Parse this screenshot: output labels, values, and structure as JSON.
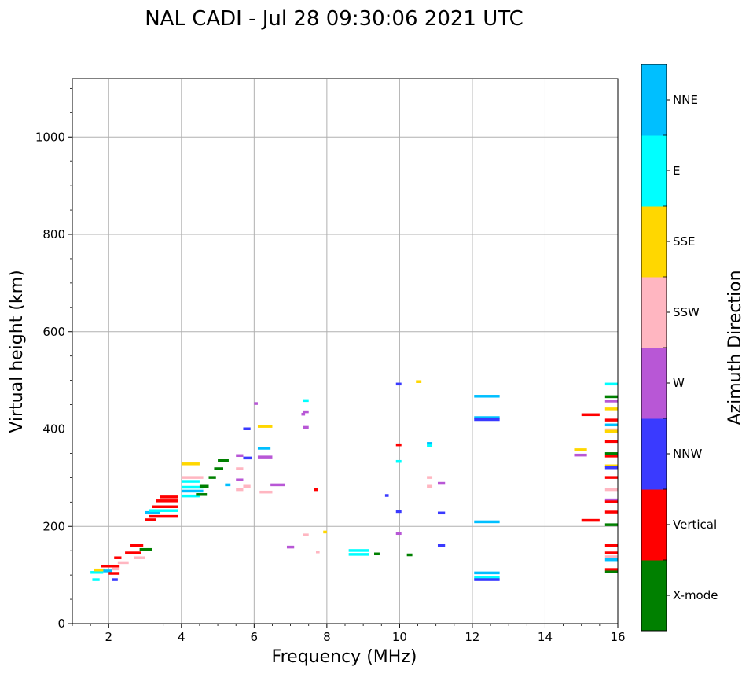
{
  "chart_data": {
    "type": "scatter",
    "title": "NAL CADI - Jul 28 09:30:06 2021 UTC",
    "xlabel": "Frequency (MHz)",
    "ylabel": "Virtual height (km)",
    "xlim": [
      1,
      16
    ],
    "ylim": [
      0,
      1120
    ],
    "xticks": [
      2,
      4,
      6,
      8,
      10,
      12,
      14,
      16
    ],
    "yticks": [
      0,
      200,
      400,
      600,
      800,
      1000
    ],
    "grid": true,
    "colorbar": {
      "label": "Azimuth Direction",
      "categories": [
        {
          "name": "X-mode",
          "color": "#008000"
        },
        {
          "name": "Vertical",
          "color": "#ff0000"
        },
        {
          "name": "NNW",
          "color": "#3a3aff"
        },
        {
          "name": "W",
          "color": "#b857d6"
        },
        {
          "name": "SSW",
          "color": "#ffb6c1"
        },
        {
          "name": "SSE",
          "color": "#ffd700"
        },
        {
          "name": "E",
          "color": "#00ffff"
        },
        {
          "name": "NNE",
          "color": "#00bfff"
        }
      ]
    },
    "echoes": [
      {
        "f": [
          1.5,
          1.85
        ],
        "h": 105,
        "d": "E"
      },
      {
        "f": [
          1.6,
          1.9
        ],
        "h": 110,
        "d": "SSE"
      },
      {
        "f": [
          1.55,
          1.75
        ],
        "h": 90,
        "d": "E"
      },
      {
        "f": [
          1.8,
          2.3
        ],
        "h": 118,
        "d": "Vertical"
      },
      {
        "f": [
          1.85,
          2.1
        ],
        "h": 108,
        "d": "NNE"
      },
      {
        "f": [
          2.0,
          2.3
        ],
        "h": 103,
        "d": "Vertical"
      },
      {
        "f": [
          2.1,
          2.3
        ],
        "h": 112,
        "d": "SSW"
      },
      {
        "f": [
          2.1,
          2.25
        ],
        "h": 90,
        "d": "NNW"
      },
      {
        "f": [
          2.15,
          2.35
        ],
        "h": 135,
        "d": "Vertical"
      },
      {
        "f": [
          2.25,
          2.55
        ],
        "h": 125,
        "d": "SSW"
      },
      {
        "f": [
          2.45,
          2.9
        ],
        "h": 145,
        "d": "Vertical"
      },
      {
        "f": [
          2.6,
          2.95
        ],
        "h": 160,
        "d": "Vertical"
      },
      {
        "f": [
          2.7,
          3.0
        ],
        "h": 135,
        "d": "SSW"
      },
      {
        "f": [
          2.85,
          3.2
        ],
        "h": 152,
        "d": "X-mode"
      },
      {
        "f": [
          3.0,
          3.3
        ],
        "h": 213,
        "d": "Vertical"
      },
      {
        "f": [
          3.0,
          3.4
        ],
        "h": 228,
        "d": "NNE"
      },
      {
        "f": [
          3.1,
          3.9
        ],
        "h": 220,
        "d": "Vertical"
      },
      {
        "f": [
          3.1,
          3.9
        ],
        "h": 232,
        "d": "E"
      },
      {
        "f": [
          3.2,
          3.9
        ],
        "h": 240,
        "d": "Vertical"
      },
      {
        "f": [
          3.3,
          3.9
        ],
        "h": 252,
        "d": "Vertical"
      },
      {
        "f": [
          3.4,
          3.9
        ],
        "h": 260,
        "d": "Vertical"
      },
      {
        "f": [
          4.0,
          4.5
        ],
        "h": 262,
        "d": "E"
      },
      {
        "f": [
          4.0,
          4.6
        ],
        "h": 272,
        "d": "NNE"
      },
      {
        "f": [
          4.0,
          4.6
        ],
        "h": 280,
        "d": "E"
      },
      {
        "f": [
          4.0,
          4.5
        ],
        "h": 292,
        "d": "E"
      },
      {
        "f": [
          4.0,
          4.6
        ],
        "h": 300,
        "d": "SSW"
      },
      {
        "f": [
          4.4,
          4.7
        ],
        "h": 265,
        "d": "X-mode"
      },
      {
        "f": [
          4.5,
          4.75
        ],
        "h": 282,
        "d": "X-mode"
      },
      {
        "f": [
          4.0,
          4.5
        ],
        "h": 328,
        "d": "SSE"
      },
      {
        "f": [
          4.75,
          4.95
        ],
        "h": 300,
        "d": "X-mode"
      },
      {
        "f": [
          4.9,
          5.15
        ],
        "h": 318,
        "d": "X-mode"
      },
      {
        "f": [
          5.0,
          5.3
        ],
        "h": 335,
        "d": "X-mode"
      },
      {
        "f": [
          5.5,
          5.7
        ],
        "h": 345,
        "d": "W"
      },
      {
        "f": [
          5.5,
          5.7
        ],
        "h": 318,
        "d": "SSW"
      },
      {
        "f": [
          5.7,
          5.95
        ],
        "h": 340,
        "d": "NNW"
      },
      {
        "f": [
          5.5,
          5.7
        ],
        "h": 295,
        "d": "W"
      },
      {
        "f": [
          5.2,
          5.35
        ],
        "h": 285,
        "d": "NNE"
      },
      {
        "f": [
          5.5,
          5.7
        ],
        "h": 275,
        "d": "SSW"
      },
      {
        "f": [
          5.7,
          5.9
        ],
        "h": 282,
        "d": "SSW"
      },
      {
        "f": [
          5.7,
          5.9
        ],
        "h": 400,
        "d": "NNW"
      },
      {
        "f": [
          6.0,
          6.1
        ],
        "h": 452,
        "d": "W"
      },
      {
        "f": [
          6.1,
          6.5
        ],
        "h": 405,
        "d": "SSE"
      },
      {
        "f": [
          6.1,
          6.45
        ],
        "h": 360,
        "d": "NNE"
      },
      {
        "f": [
          6.1,
          6.5
        ],
        "h": 342,
        "d": "W"
      },
      {
        "f": [
          6.45,
          6.85
        ],
        "h": 285,
        "d": "W"
      },
      {
        "f": [
          6.15,
          6.5
        ],
        "h": 270,
        "d": "SSW"
      },
      {
        "f": [
          6.9,
          7.1
        ],
        "h": 157,
        "d": "W"
      },
      {
        "f": [
          7.35,
          7.5
        ],
        "h": 458,
        "d": "E"
      },
      {
        "f": [
          7.35,
          7.5
        ],
        "h": 435,
        "d": "W"
      },
      {
        "f": [
          7.3,
          7.4
        ],
        "h": 430,
        "d": "W"
      },
      {
        "f": [
          7.35,
          7.5
        ],
        "h": 403,
        "d": "W"
      },
      {
        "f": [
          7.35,
          7.5
        ],
        "h": 182,
        "d": "SSW"
      },
      {
        "f": [
          7.65,
          7.75
        ],
        "h": 275,
        "d": "Vertical"
      },
      {
        "f": [
          7.7,
          7.8
        ],
        "h": 147,
        "d": "SSW"
      },
      {
        "f": [
          7.9,
          8.0
        ],
        "h": 188,
        "d": "SSE"
      },
      {
        "f": [
          8.6,
          9.15
        ],
        "h": 150,
        "d": "E"
      },
      {
        "f": [
          8.6,
          9.15
        ],
        "h": 142,
        "d": "E"
      },
      {
        "f": [
          9.3,
          9.45
        ],
        "h": 143,
        "d": "X-mode"
      },
      {
        "f": [
          9.6,
          9.7
        ],
        "h": 263,
        "d": "NNW"
      },
      {
        "f": [
          9.9,
          10.05
        ],
        "h": 492,
        "d": "NNW"
      },
      {
        "f": [
          9.9,
          10.05
        ],
        "h": 367,
        "d": "Vertical"
      },
      {
        "f": [
          9.9,
          10.05
        ],
        "h": 333,
        "d": "E"
      },
      {
        "f": [
          9.9,
          10.05
        ],
        "h": 230,
        "d": "NNW"
      },
      {
        "f": [
          9.9,
          10.05
        ],
        "h": 185,
        "d": "W"
      },
      {
        "f": [
          10.2,
          10.35
        ],
        "h": 141,
        "d": "X-mode"
      },
      {
        "f": [
          10.45,
          10.6
        ],
        "h": 497,
        "d": "SSE"
      },
      {
        "f": [
          10.75,
          10.9
        ],
        "h": 370,
        "d": "NNE"
      },
      {
        "f": [
          10.75,
          10.9
        ],
        "h": 366,
        "d": "E"
      },
      {
        "f": [
          10.75,
          10.9
        ],
        "h": 300,
        "d": "SSW"
      },
      {
        "f": [
          10.75,
          10.9
        ],
        "h": 282,
        "d": "SSW"
      },
      {
        "f": [
          11.05,
          11.25
        ],
        "h": 288,
        "d": "W"
      },
      {
        "f": [
          11.05,
          11.25
        ],
        "h": 227,
        "d": "NNW"
      },
      {
        "f": [
          11.05,
          11.25
        ],
        "h": 160,
        "d": "NNW"
      },
      {
        "f": [
          12.05,
          12.75
        ],
        "h": 467,
        "d": "NNE"
      },
      {
        "f": [
          12.05,
          12.75
        ],
        "h": 423,
        "d": "NNE"
      },
      {
        "f": [
          12.05,
          12.75
        ],
        "h": 419,
        "d": "NNW"
      },
      {
        "f": [
          12.05,
          12.75
        ],
        "h": 209,
        "d": "NNE"
      },
      {
        "f": [
          12.05,
          12.75
        ],
        "h": 104,
        "d": "NNE"
      },
      {
        "f": [
          12.05,
          12.75
        ],
        "h": 94,
        "d": "E"
      },
      {
        "f": [
          12.05,
          12.75
        ],
        "h": 90,
        "d": "NNW"
      },
      {
        "f": [
          14.8,
          15.15
        ],
        "h": 357,
        "d": "SSE"
      },
      {
        "f": [
          14.8,
          15.15
        ],
        "h": 346,
        "d": "W"
      },
      {
        "f": [
          15.0,
          15.5
        ],
        "h": 429,
        "d": "Vertical"
      },
      {
        "f": [
          15.0,
          15.5
        ],
        "h": 212,
        "d": "Vertical"
      },
      {
        "f": [
          15.65,
          16.0
        ],
        "h": 492,
        "d": "E"
      },
      {
        "f": [
          15.65,
          16.0
        ],
        "h": 466,
        "d": "X-mode"
      },
      {
        "f": [
          15.65,
          16.0
        ],
        "h": 457,
        "d": "W"
      },
      {
        "f": [
          15.65,
          16.0
        ],
        "h": 441,
        "d": "SSE"
      },
      {
        "f": [
          15.65,
          16.0
        ],
        "h": 418,
        "d": "Vertical"
      },
      {
        "f": [
          15.65,
          16.0
        ],
        "h": 408,
        "d": "NNE"
      },
      {
        "f": [
          15.65,
          16.0
        ],
        "h": 398,
        "d": "SSW"
      },
      {
        "f": [
          15.65,
          16.0
        ],
        "h": 395,
        "d": "SSE"
      },
      {
        "f": [
          15.65,
          16.0
        ],
        "h": 374,
        "d": "Vertical"
      },
      {
        "f": [
          15.65,
          16.0
        ],
        "h": 349,
        "d": "X-mode"
      },
      {
        "f": [
          15.65,
          16.0
        ],
        "h": 344,
        "d": "Vertical"
      },
      {
        "f": [
          15.65,
          16.0
        ],
        "h": 324,
        "d": "SSE"
      },
      {
        "f": [
          15.65,
          16.0
        ],
        "h": 320,
        "d": "NNW"
      },
      {
        "f": [
          15.65,
          16.0
        ],
        "h": 300,
        "d": "Vertical"
      },
      {
        "f": [
          15.65,
          16.0
        ],
        "h": 275,
        "d": "SSW"
      },
      {
        "f": [
          15.65,
          16.0
        ],
        "h": 254,
        "d": "W"
      },
      {
        "f": [
          15.65,
          16.0
        ],
        "h": 250,
        "d": "Vertical"
      },
      {
        "f": [
          15.65,
          16.0
        ],
        "h": 229,
        "d": "Vertical"
      },
      {
        "f": [
          15.65,
          16.0
        ],
        "h": 203,
        "d": "X-mode"
      },
      {
        "f": [
          15.65,
          16.0
        ],
        "h": 160,
        "d": "Vertical"
      },
      {
        "f": [
          15.65,
          16.0
        ],
        "h": 145,
        "d": "Vertical"
      },
      {
        "f": [
          15.65,
          16.0
        ],
        "h": 137,
        "d": "SSW"
      },
      {
        "f": [
          15.65,
          16.0
        ],
        "h": 131,
        "d": "NNE"
      },
      {
        "f": [
          15.65,
          16.0
        ],
        "h": 111,
        "d": "Vertical"
      },
      {
        "f": [
          15.65,
          16.0
        ],
        "h": 106,
        "d": "X-mode"
      }
    ]
  }
}
